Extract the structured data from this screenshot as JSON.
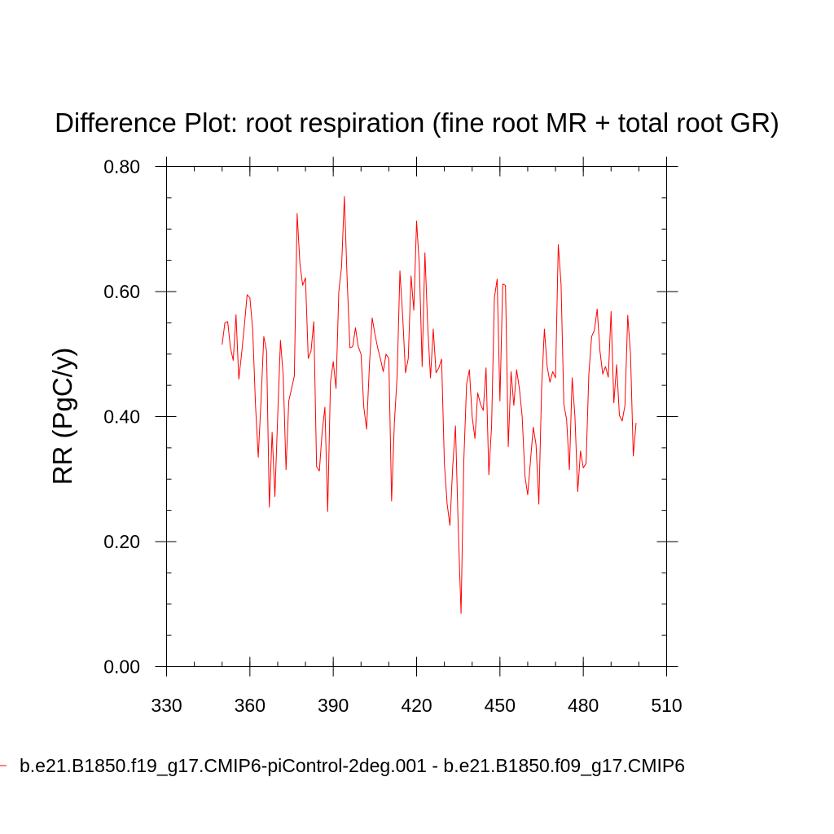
{
  "chart_data": {
    "type": "line",
    "title": "Difference Plot: root respiration (fine root MR + total root GR)",
    "xlabel": "",
    "ylabel": "RR  (PgC/y)",
    "xlim": [
      330,
      510
    ],
    "ylim": [
      0.0,
      0.8
    ],
    "x_ticks": [
      330,
      360,
      390,
      420,
      450,
      480,
      510
    ],
    "x_tick_labels": [
      "330",
      "360",
      "390",
      "420",
      "450",
      "480",
      "510"
    ],
    "y_ticks": [
      0.0,
      0.2,
      0.4,
      0.6,
      0.8
    ],
    "y_tick_labels": [
      "0.00",
      "0.20",
      "0.40",
      "0.60",
      "0.80"
    ],
    "x_minor_step": 10,
    "y_minor_step": 0.05,
    "grid": false,
    "legend_position": "bottom",
    "series": [
      {
        "name": "b.e21.B1850.f19_g17.CMIP6-piControl-2deg.001 - b.e21.B1850.f09_g17.CMIP6",
        "color": "#ff0000",
        "x_start": 350,
        "x_step": 1,
        "values": [
          0.515,
          0.55,
          0.552,
          0.51,
          0.49,
          0.563,
          0.46,
          0.5,
          0.545,
          0.595,
          0.59,
          0.54,
          0.42,
          0.335,
          0.425,
          0.528,
          0.505,
          0.255,
          0.375,
          0.272,
          0.4,
          0.522,
          0.465,
          0.315,
          0.425,
          0.445,
          0.465,
          0.725,
          0.645,
          0.61,
          0.622,
          0.493,
          0.505,
          0.552,
          0.32,
          0.313,
          0.375,
          0.415,
          0.248,
          0.455,
          0.488,
          0.445,
          0.6,
          0.64,
          0.752,
          0.62,
          0.51,
          0.512,
          0.542,
          0.512,
          0.5,
          0.415,
          0.38,
          0.48,
          0.558,
          0.532,
          0.51,
          0.492,
          0.472,
          0.5,
          0.493,
          0.265,
          0.39,
          0.465,
          0.633,
          0.56,
          0.47,
          0.493,
          0.625,
          0.57,
          0.713,
          0.64,
          0.48,
          0.662,
          0.545,
          0.462,
          0.54,
          0.47,
          0.478,
          0.492,
          0.325,
          0.26,
          0.226,
          0.32,
          0.385,
          0.22,
          0.085,
          0.33,
          0.452,
          0.475,
          0.4,
          0.365,
          0.438,
          0.42,
          0.41,
          0.478,
          0.307,
          0.385,
          0.59,
          0.62,
          0.425,
          0.612,
          0.61,
          0.352,
          0.472,
          0.418,
          0.475,
          0.445,
          0.4,
          0.305,
          0.275,
          0.33,
          0.383,
          0.355,
          0.26,
          0.445,
          0.54,
          0.48,
          0.455,
          0.472,
          0.462,
          0.675,
          0.612,
          0.42,
          0.395,
          0.315,
          0.462,
          0.4,
          0.28,
          0.345,
          0.318,
          0.325,
          0.468,
          0.528,
          0.538,
          0.572,
          0.505,
          0.468,
          0.48,
          0.463,
          0.568,
          0.422,
          0.483,
          0.402,
          0.393,
          0.418,
          0.562,
          0.5,
          0.337,
          0.39
        ]
      }
    ]
  }
}
